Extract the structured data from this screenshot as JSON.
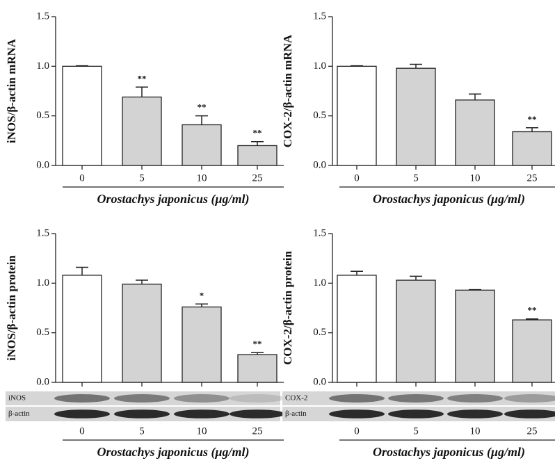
{
  "chart_data": [
    {
      "type": "bar",
      "ylabel": "iNOS/β-actin mRNA",
      "xlabel": "Orostachys japonicus (μg/ml)",
      "categories": [
        "0",
        "5",
        "10",
        "25"
      ],
      "values": [
        1.0,
        0.69,
        0.41,
        0.2
      ],
      "errors": [
        0.005,
        0.1,
        0.09,
        0.04
      ],
      "colors": [
        "#ffffff",
        "#d3d3d3",
        "#d3d3d3",
        "#d3d3d3"
      ],
      "annotations": [
        null,
        "**",
        "**",
        "**"
      ],
      "ylim": [
        0,
        1.5
      ],
      "yticks": [
        {
          "value": 0,
          "label": "0.0"
        },
        {
          "value": 0.5,
          "label": "0.5"
        },
        {
          "value": 1,
          "label": "1.0"
        },
        {
          "value": 1.5,
          "label": "1.5"
        }
      ]
    },
    {
      "type": "bar",
      "ylabel": "COX-2/β-actin mRNA",
      "xlabel": "Orostachys japonicus (μg/ml)",
      "categories": [
        "0",
        "5",
        "10",
        "25"
      ],
      "values": [
        1.0,
        0.98,
        0.66,
        0.34
      ],
      "errors": [
        0.005,
        0.04,
        0.06,
        0.04
      ],
      "colors": [
        "#ffffff",
        "#d3d3d3",
        "#d3d3d3",
        "#d3d3d3"
      ],
      "annotations": [
        null,
        null,
        null,
        "**"
      ],
      "ylim": [
        0,
        1.5
      ],
      "yticks": [
        {
          "value": 0,
          "label": "0.0"
        },
        {
          "value": 0.5,
          "label": "0.5"
        },
        {
          "value": 1,
          "label": "1.0"
        },
        {
          "value": 1.5,
          "label": "1.5"
        }
      ]
    },
    {
      "type": "bar",
      "ylabel": "iNOS/β-actin protein",
      "xlabel": "Orostachys japonicus (μg/ml)",
      "categories": [
        "0",
        "5",
        "10",
        "25"
      ],
      "values": [
        1.08,
        0.99,
        0.76,
        0.28
      ],
      "errors": [
        0.08,
        0.04,
        0.03,
        0.02
      ],
      "colors": [
        "#ffffff",
        "#d3d3d3",
        "#d3d3d3",
        "#d3d3d3"
      ],
      "annotations": [
        null,
        null,
        "*",
        "**"
      ],
      "blot_labels": [
        "iNOS",
        "β-actin"
      ],
      "ylim": [
        0,
        1.5
      ],
      "yticks": [
        {
          "value": 0,
          "label": "0.0"
        },
        {
          "value": 0.5,
          "label": "0.5"
        },
        {
          "value": 1,
          "label": "1.0"
        },
        {
          "value": 1.5,
          "label": "1.5"
        }
      ]
    },
    {
      "type": "bar",
      "ylabel": "COX-2/β-actin protein",
      "xlabel": "Orostachys japonicus (μg/ml)",
      "categories": [
        "0",
        "5",
        "10",
        "25"
      ],
      "values": [
        1.08,
        1.03,
        0.93,
        0.63
      ],
      "errors": [
        0.04,
        0.04,
        0.005,
        0.01
      ],
      "colors": [
        "#ffffff",
        "#d3d3d3",
        "#d3d3d3",
        "#d3d3d3"
      ],
      "annotations": [
        null,
        null,
        null,
        "**"
      ],
      "blot_labels": [
        "COX-2",
        "β-actin"
      ],
      "ylim": [
        0,
        1.5
      ],
      "yticks": [
        {
          "value": 0,
          "label": "0.0"
        },
        {
          "value": 0.5,
          "label": "0.5"
        },
        {
          "value": 1,
          "label": "1.0"
        },
        {
          "value": 1.5,
          "label": "1.5"
        }
      ]
    }
  ]
}
